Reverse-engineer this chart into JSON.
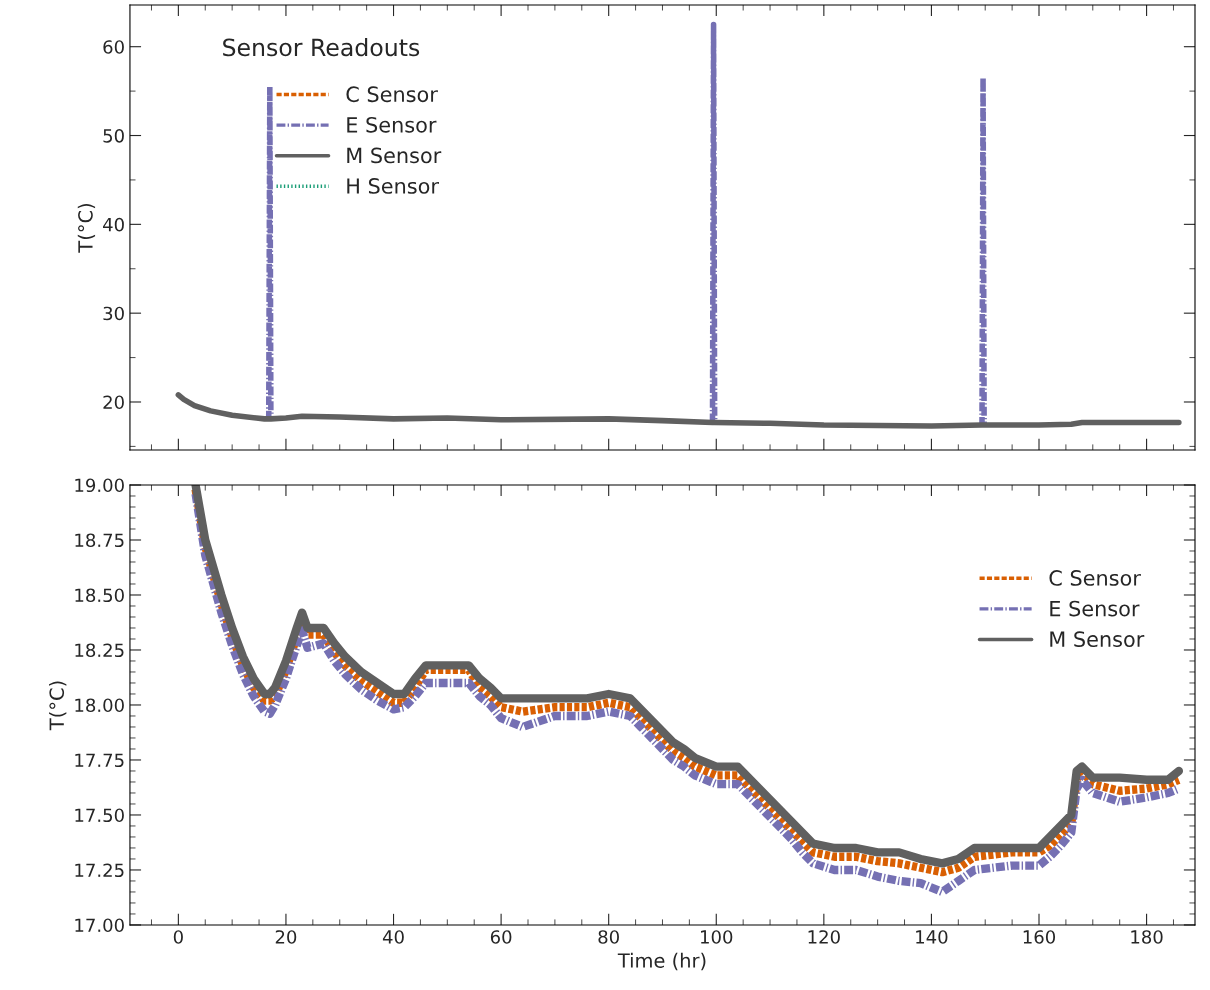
{
  "chart_data": [
    {
      "type": "line",
      "title": "Sensor Readouts",
      "ylabel": "T(°C)",
      "xlim": [
        -9,
        189
      ],
      "ylim": [
        14.6,
        64.7
      ],
      "xticks": [
        0,
        20,
        40,
        60,
        80,
        100,
        120,
        140,
        160,
        180
      ],
      "yticks": [
        20,
        30,
        40,
        50,
        60
      ],
      "tick_labels": "y",
      "legend": "top left",
      "grid": false,
      "x": [
        0,
        1,
        3,
        6,
        10,
        16,
        16.8,
        17,
        17.2,
        20,
        23,
        30,
        40,
        50,
        60,
        80,
        90,
        99.3,
        99.5,
        99.7,
        110,
        120,
        140,
        149.4,
        149.6,
        149.8,
        160,
        166,
        168,
        186
      ],
      "series": [
        {
          "name": "C Sensor",
          "color": "#d95f02",
          "line_style": "dashed",
          "values": [
            null,
            null,
            null,
            null,
            null,
            null,
            null,
            null,
            null,
            null,
            null,
            null,
            null,
            null,
            null,
            null,
            null,
            null,
            null,
            null,
            null,
            null,
            null,
            null,
            null,
            null,
            null,
            null,
            null,
            null
          ]
        },
        {
          "name": "E Sensor",
          "color": "#7570b3",
          "line_style": "dashdot",
          "values": [
            null,
            null,
            null,
            null,
            null,
            null,
            18.0,
            55.5,
            18.0,
            null,
            null,
            null,
            null,
            null,
            null,
            null,
            null,
            17.7,
            62.5,
            17.7,
            null,
            null,
            null,
            17.3,
            56.5,
            17.3,
            null,
            null,
            null,
            null
          ]
        },
        {
          "name": "M Sensor",
          "color": "#606060",
          "line_style": "solid",
          "values": [
            20.8,
            20.3,
            19.6,
            19.0,
            18.5,
            18.1,
            18.1,
            18.1,
            18.1,
            18.2,
            18.4,
            18.3,
            18.1,
            18.2,
            18.0,
            18.1,
            17.9,
            17.7,
            17.7,
            17.7,
            17.6,
            17.4,
            17.3,
            17.4,
            17.4,
            17.4,
            17.4,
            17.5,
            17.7,
            17.7
          ]
        },
        {
          "name": "H Sensor",
          "color": "#1b9e77",
          "line_style": "dotted",
          "values": [
            null,
            null,
            null,
            null,
            null,
            null,
            null,
            null,
            null,
            null,
            null,
            null,
            null,
            null,
            null,
            null,
            null,
            null,
            null,
            null,
            null,
            null,
            null,
            null,
            null,
            null,
            null,
            null,
            null,
            null
          ]
        }
      ]
    },
    {
      "type": "line",
      "xlabel": "Time (hr)",
      "ylabel": "T(°C)",
      "xlim": [
        -9,
        189
      ],
      "ylim": [
        17,
        19
      ],
      "xticks": [
        0,
        20,
        40,
        60,
        80,
        100,
        120,
        140,
        160,
        180
      ],
      "yticks": [
        {
          "value": 17,
          "label": "17.00"
        },
        {
          "value": 17.25,
          "label": "17.25"
        },
        {
          "value": 17.5,
          "label": "17.50"
        },
        {
          "value": 17.75,
          "label": "17.75"
        },
        {
          "value": 18,
          "label": "18.00"
        },
        {
          "value": 18.25,
          "label": "18.25"
        },
        {
          "value": 18.5,
          "label": "18.50"
        },
        {
          "value": 18.75,
          "label": "18.75"
        },
        {
          "value": 19,
          "label": "19.00"
        }
      ],
      "legend": "top right",
      "grid": false,
      "x": [
        3.2,
        5,
        8,
        10,
        12,
        14,
        16,
        17,
        18,
        20,
        22,
        23,
        24,
        27,
        29,
        31,
        34,
        37,
        40,
        42,
        44,
        46,
        50,
        54,
        56,
        58,
        60,
        64,
        70,
        76,
        80,
        84,
        86,
        88,
        90,
        92,
        94,
        96,
        100,
        104,
        106,
        108,
        110,
        112,
        114,
        116,
        118,
        122,
        126,
        130,
        134,
        138,
        142,
        145,
        148,
        155,
        160,
        162,
        164,
        166,
        167,
        168,
        170,
        175,
        180,
        184,
        186
      ],
      "series": [
        {
          "name": "C Sensor",
          "color": "#d95f02",
          "line_style": "dashed",
          "values": [
            18.98,
            18.72,
            18.46,
            18.31,
            18.18,
            18.08,
            18.02,
            18.02,
            18.04,
            18.16,
            18.31,
            18.38,
            18.32,
            18.32,
            18.24,
            18.18,
            18.11,
            18.06,
            18.01,
            18.01,
            18.08,
            18.16,
            18.16,
            18.16,
            18.08,
            18.04,
            17.99,
            17.97,
            17.99,
            17.99,
            18.01,
            17.99,
            17.94,
            17.89,
            17.84,
            17.79,
            17.76,
            17.72,
            17.68,
            17.68,
            17.63,
            17.58,
            17.53,
            17.48,
            17.43,
            17.38,
            17.33,
            17.31,
            17.31,
            17.29,
            17.28,
            17.26,
            17.24,
            17.26,
            17.31,
            17.33,
            17.33,
            17.36,
            17.41,
            17.46,
            17.66,
            17.7,
            17.64,
            17.61,
            17.62,
            17.64,
            17.66
          ]
        },
        {
          "name": "E Sensor",
          "color": "#7570b3",
          "line_style": "dashdot",
          "values": [
            18.96,
            18.68,
            18.42,
            18.27,
            18.14,
            18.04,
            17.97,
            17.96,
            18.0,
            18.12,
            18.27,
            18.34,
            18.26,
            18.28,
            18.2,
            18.14,
            18.07,
            18.02,
            17.98,
            17.99,
            18.04,
            18.1,
            18.1,
            18.1,
            18.04,
            18.0,
            17.94,
            17.9,
            17.95,
            17.95,
            17.97,
            17.95,
            17.9,
            17.85,
            17.8,
            17.75,
            17.72,
            17.68,
            17.64,
            17.64,
            17.59,
            17.54,
            17.49,
            17.44,
            17.39,
            17.33,
            17.28,
            17.25,
            17.25,
            17.22,
            17.2,
            17.19,
            17.15,
            17.2,
            17.25,
            17.27,
            17.27,
            17.31,
            17.36,
            17.42,
            17.62,
            17.66,
            17.6,
            17.56,
            17.58,
            17.6,
            17.62
          ]
        },
        {
          "name": "M Sensor",
          "color": "#606060",
          "line_style": "solid",
          "values": [
            19.0,
            18.75,
            18.5,
            18.35,
            18.22,
            18.12,
            18.05,
            18.05,
            18.08,
            18.2,
            18.35,
            18.42,
            18.35,
            18.35,
            18.28,
            18.22,
            18.15,
            18.1,
            18.05,
            18.05,
            18.12,
            18.18,
            18.18,
            18.18,
            18.12,
            18.08,
            18.03,
            18.03,
            18.03,
            18.03,
            18.05,
            18.03,
            17.98,
            17.93,
            17.88,
            17.83,
            17.8,
            17.76,
            17.72,
            17.72,
            17.67,
            17.62,
            17.57,
            17.52,
            17.47,
            17.42,
            17.37,
            17.35,
            17.35,
            17.33,
            17.33,
            17.3,
            17.28,
            17.3,
            17.35,
            17.35,
            17.35,
            17.4,
            17.45,
            17.5,
            17.7,
            17.72,
            17.67,
            17.67,
            17.66,
            17.66,
            17.7
          ]
        }
      ]
    }
  ]
}
